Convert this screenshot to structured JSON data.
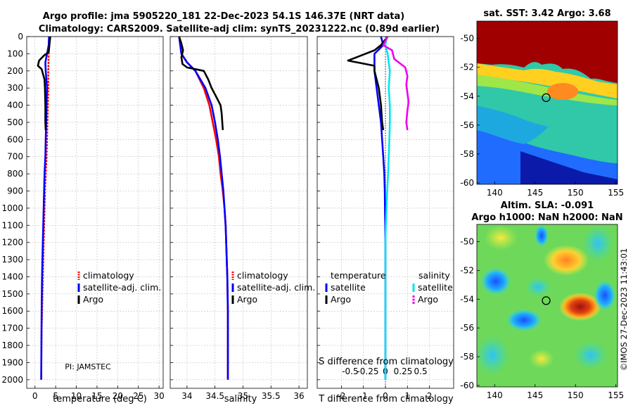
{
  "title_line1": "Argo profile: jma 5905220_181 22-Dec-2023 54.1S 146.37E (NRT data)",
  "title_line2": "Climatology: CARS2009. Satellite-adj clim: synTS_20231222.nc (0.89d earlier)",
  "pi_label": "PI: JAMSTEC",
  "watermark": "©IMOS 27-Dec-2023 11:43:01",
  "colors": {
    "climatology": "#ff0000",
    "satellite_adj": "#0000ff",
    "argo": "#000000",
    "salinity_sat": "#00e5ee",
    "salinity_argo": "#ee00ee"
  },
  "depth_axis": {
    "ylim": [
      0,
      2050
    ],
    "ticks": [
      0,
      100,
      200,
      300,
      400,
      500,
      600,
      700,
      800,
      900,
      1000,
      1100,
      1200,
      1300,
      1400,
      1500,
      1600,
      1700,
      1800,
      1900,
      2000
    ]
  },
  "chart_data": [
    {
      "type": "line",
      "name": "temperature",
      "xlabel": "temperature (deg C)",
      "xlim": [
        -2,
        31
      ],
      "xticks": [
        0,
        5,
        10,
        15,
        20,
        25,
        30
      ],
      "legend": [
        "climatology",
        "satellite-adj. clim.",
        "Argo"
      ],
      "series": [
        {
          "name": "climatology",
          "color": "#ff0000",
          "x": [
            3.6,
            3.5,
            3.3,
            3.2,
            3.2,
            3.1,
            3.0,
            2.9,
            2.8,
            2.6,
            2.4,
            2.3,
            2.2,
            2.1,
            2.0,
            1.9,
            1.8,
            1.7,
            1.6,
            1.55,
            1.5
          ],
          "y": [
            0,
            30,
            100,
            200,
            300,
            400,
            500,
            600,
            700,
            800,
            900,
            1000,
            1100,
            1200,
            1300,
            1400,
            1500,
            1600,
            1700,
            1800,
            2000
          ]
        },
        {
          "name": "satellite-adj. clim.",
          "color": "#0000ff",
          "x": [
            3.4,
            3.3,
            2.5,
            2.6,
            2.9,
            2.8,
            2.7,
            2.6,
            2.5,
            2.3,
            2.2,
            2.1,
            2.0,
            1.9,
            1.8,
            1.7,
            1.6,
            1.55,
            1.5
          ],
          "y": [
            0,
            50,
            150,
            200,
            300,
            400,
            500,
            600,
            700,
            800,
            900,
            1000,
            1100,
            1200,
            1300,
            1400,
            1600,
            1800,
            2000
          ]
        },
        {
          "name": "Argo",
          "color": "#000000",
          "x": [
            3.7,
            3.3,
            2.2,
            1.0,
            0.7,
            1.6,
            2.3,
            2.4,
            2.5,
            2.5,
            2.6
          ],
          "y": [
            0,
            90,
            110,
            140,
            170,
            190,
            250,
            300,
            400,
            500,
            545
          ]
        }
      ]
    },
    {
      "type": "line",
      "name": "salinity",
      "xlabel": "salinity",
      "xlim": [
        33.7,
        36.15
      ],
      "xticks": [
        34,
        34.5,
        35,
        35.5,
        36
      ],
      "legend": [
        "climatology",
        "satellite-adj. clim.",
        "Argo"
      ],
      "series": [
        {
          "name": "climatology",
          "color": "#ff0000",
          "x": [
            33.86,
            33.9,
            34.0,
            34.15,
            34.3,
            34.4,
            34.46,
            34.52,
            34.57,
            34.6,
            34.64,
            34.67,
            34.69,
            34.7,
            34.71,
            34.72,
            34.73,
            34.73,
            34.73
          ],
          "y": [
            0,
            100,
            150,
            200,
            300,
            400,
            500,
            600,
            700,
            800,
            900,
            1000,
            1100,
            1200,
            1300,
            1400,
            1600,
            1800,
            2000
          ]
        },
        {
          "name": "satellite-adj. clim.",
          "color": "#0000ff",
          "x": [
            33.86,
            33.9,
            34.0,
            34.15,
            34.33,
            34.44,
            34.5,
            34.55,
            34.59,
            34.62,
            34.65,
            34.67,
            34.69,
            34.7,
            34.71,
            34.72,
            34.73,
            34.73,
            34.73
          ],
          "y": [
            0,
            100,
            150,
            200,
            300,
            400,
            500,
            600,
            700,
            800,
            900,
            1000,
            1100,
            1200,
            1300,
            1400,
            1600,
            1800,
            2000
          ]
        },
        {
          "name": "Argo",
          "color": "#000000",
          "x": [
            33.86,
            33.9,
            33.93,
            33.9,
            33.92,
            34.0,
            34.15,
            34.3,
            34.38,
            34.44,
            34.52,
            34.6,
            34.62,
            34.64
          ],
          "y": [
            0,
            40,
            80,
            120,
            160,
            180,
            190,
            200,
            250,
            300,
            350,
            400,
            450,
            545
          ]
        }
      ]
    },
    {
      "type": "line",
      "name": "difference",
      "xlabel": "T difference from climatology",
      "xlabel2": "S difference from climatology",
      "xlim": [
        -3.1,
        3.1
      ],
      "xticks": [
        -2,
        -1,
        0,
        1,
        2
      ],
      "s_tick_labels": [
        "-0.5",
        "-0.25",
        "0",
        "0.25",
        "0.5"
      ],
      "legend_temperature_title": "temperature",
      "legend_salinity_title": "salinity",
      "legend_entries": [
        "satellite",
        "Argo"
      ],
      "series": [
        {
          "name": "T satellite",
          "color": "#0000ff",
          "x": [
            -0.2,
            -0.1,
            -0.5,
            -0.5,
            -0.4,
            -0.3,
            -0.2,
            -0.15,
            -0.1,
            -0.05,
            -0.03,
            -0.02,
            -0.01,
            0,
            0,
            0,
            0
          ],
          "y": [
            0,
            50,
            100,
            200,
            300,
            400,
            500,
            600,
            700,
            800,
            900,
            1000,
            1100,
            1200,
            1500,
            1800,
            2000
          ]
        },
        {
          "name": "T Argo",
          "color": "#000000",
          "x": [
            0.1,
            -0.2,
            -0.5,
            -1.1,
            -1.7,
            -0.5,
            -0.5,
            -0.4,
            -0.3,
            -0.2,
            -0.15,
            -0.1
          ],
          "y": [
            0,
            50,
            80,
            110,
            140,
            170,
            200,
            250,
            300,
            400,
            500,
            545
          ]
        },
        {
          "name": "S satellite",
          "color": "#00e5ee",
          "x": [
            0.05,
            0.0,
            0.1,
            0.2,
            0.15,
            0.2,
            0.2,
            0.18,
            0.15,
            0.12,
            0.08,
            0.05,
            0.02,
            0,
            0,
            0
          ],
          "y": [
            0,
            50,
            100,
            200,
            300,
            400,
            500,
            600,
            700,
            800,
            900,
            1000,
            1100,
            1200,
            1600,
            2000
          ]
        },
        {
          "name": "S Argo",
          "color": "#ee00ee",
          "x": [
            0.1,
            -0.1,
            0.3,
            0.4,
            0.9,
            1.0,
            0.95,
            1.0,
            1.05,
            1.0,
            0.95,
            1.0
          ],
          "y": [
            0,
            50,
            80,
            130,
            180,
            230,
            280,
            330,
            380,
            430,
            500,
            545
          ]
        }
      ]
    }
  ],
  "map1": {
    "title": "sat. SST: 3.42  Argo: 3.68",
    "xticks": [
      140,
      145,
      150,
      155
    ],
    "yticks": [
      -50,
      -52,
      -54,
      -56,
      -58,
      -60
    ],
    "xlim": [
      137.8,
      155.2
    ],
    "ylim": [
      -60.1,
      -48.8
    ],
    "argo_lon": 146.37,
    "argo_lat": -54.1
  },
  "map2": {
    "title_line1": "Altim. SLA: -0.091",
    "title_line2": "Argo h1000: NaN h2000: NaN",
    "xticks": [
      140,
      145,
      150,
      155
    ],
    "yticks": [
      -50,
      -52,
      -54,
      -56,
      -58,
      -60
    ],
    "xlim": [
      137.8,
      155.2
    ],
    "ylim": [
      -60.1,
      -48.8
    ],
    "argo_lon": 146.37,
    "argo_lat": -54.1
  }
}
